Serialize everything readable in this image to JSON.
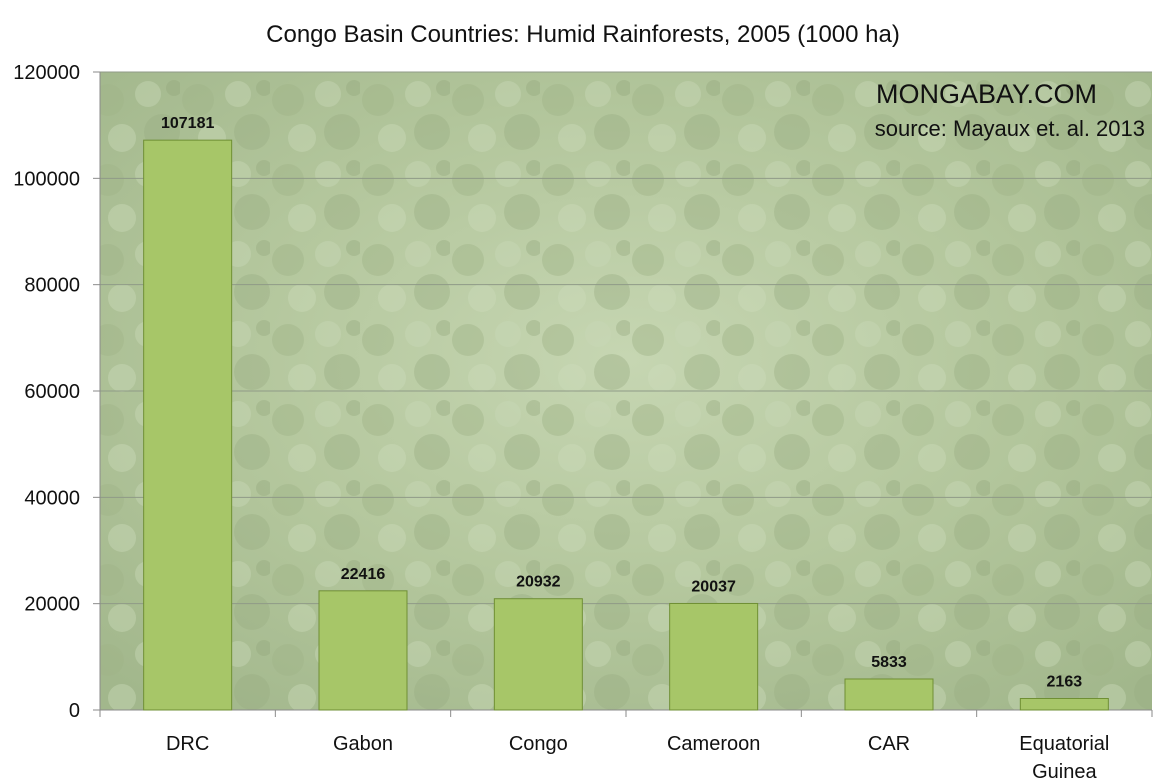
{
  "chart_data": {
    "type": "bar",
    "title": "Congo Basin Countries: Humid Rainforests, 2005 (1000 ha)",
    "categories": [
      "DRC",
      "Gabon",
      "Congo",
      "Cameroon",
      "CAR",
      "Equatorial Guinea"
    ],
    "values": [
      107181,
      22416,
      20932,
      20037,
      5833,
      2163
    ],
    "data_labels": [
      "107181",
      "22416",
      "20932",
      "20037",
      "5833",
      "2163"
    ],
    "ylim": [
      0,
      120000
    ],
    "yticks": [
      0,
      20000,
      40000,
      60000,
      80000,
      100000,
      120000
    ],
    "ytick_labels": [
      "0",
      "20000",
      "40000",
      "60000",
      "80000",
      "100000",
      "120000"
    ],
    "grid": true,
    "legend": "none",
    "bar_color": "#a7c668",
    "bar_edge_color": "#6f8f34"
  },
  "watermark": {
    "brand": "MONGABAY.COM",
    "source": "source: Mayaux et. al. 2013"
  }
}
